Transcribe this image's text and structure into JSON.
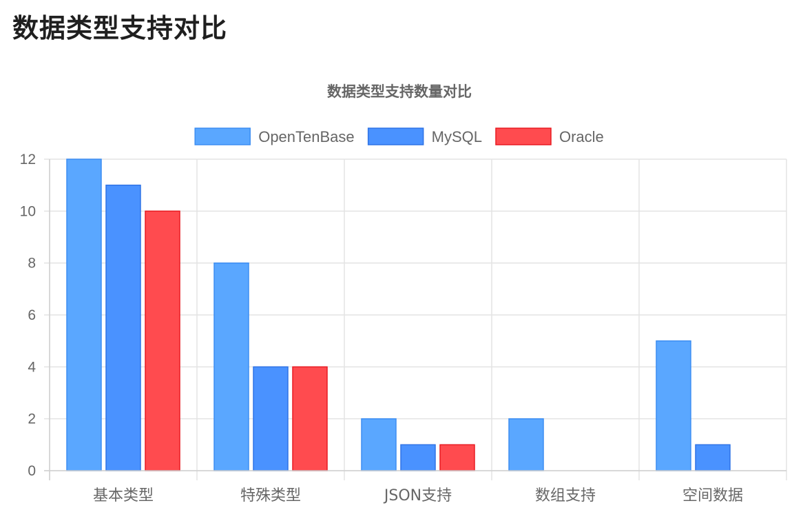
{
  "page": {
    "title": "数据类型支持对比"
  },
  "chart_data": {
    "type": "bar",
    "title": "数据类型支持数量对比",
    "categories": [
      "基本类型",
      "特殊类型",
      "JSON支持",
      "数组支持",
      "空间数据"
    ],
    "series": [
      {
        "name": "OpenTenBase",
        "values": [
          12,
          8,
          2,
          2,
          5
        ],
        "fill": "#5aa7ff",
        "stroke": "#3d8ef2"
      },
      {
        "name": "MySQL",
        "values": [
          11,
          4,
          1,
          0,
          1
        ],
        "fill": "#4a92ff",
        "stroke": "#2f73e6"
      },
      {
        "name": "Oracle",
        "values": [
          10,
          4,
          1,
          0,
          0
        ],
        "fill": "#ff4b4f",
        "stroke": "#e81b22"
      }
    ],
    "ylim": [
      0,
      12
    ],
    "yticks": [
      0,
      2,
      4,
      6,
      8,
      10,
      12
    ],
    "grid": true,
    "legend": "top-center",
    "xlabel": "",
    "ylabel": ""
  }
}
